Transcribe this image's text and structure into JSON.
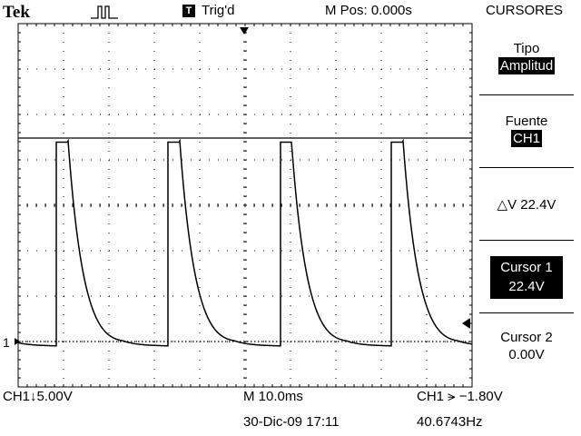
{
  "header": {
    "brand": "Tek",
    "trigger_badge": "T",
    "trigger_status": "Trig'd",
    "m_pos": "M Pos: 0.000s"
  },
  "menu": {
    "title": "CURSORES",
    "tipo_label": "Tipo",
    "tipo_value": "Amplitud",
    "fuente_label": "Fuente",
    "fuente_value": "CH1",
    "delta_v": "△V 22.4V",
    "cursor1_label": "Cursor 1",
    "cursor1_value": "22.4V",
    "cursor2_label": "Cursor 2",
    "cursor2_value": "0.00V"
  },
  "footer": {
    "ch1_scale": "CH1↓5.00V",
    "time_scale": "M 10.0ms",
    "trigger_info": "CH1 ⪫ −1.80V",
    "datetime": "30-Dic-09 17:11",
    "frequency": "40.6743Hz"
  },
  "channel_marker": "1",
  "chart_data": {
    "type": "line",
    "title": "",
    "xlabel": "",
    "ylabel": "",
    "volts_per_div": 5.0,
    "time_per_div_ms": 10.0,
    "x_divisions": 10,
    "y_divisions": 8,
    "cursor_levels_v": [
      22.4,
      0.0
    ],
    "series": [
      {
        "period_ms": 24.6,
        "high_v": 22.4,
        "low_v": -0.5
      }
    ]
  }
}
